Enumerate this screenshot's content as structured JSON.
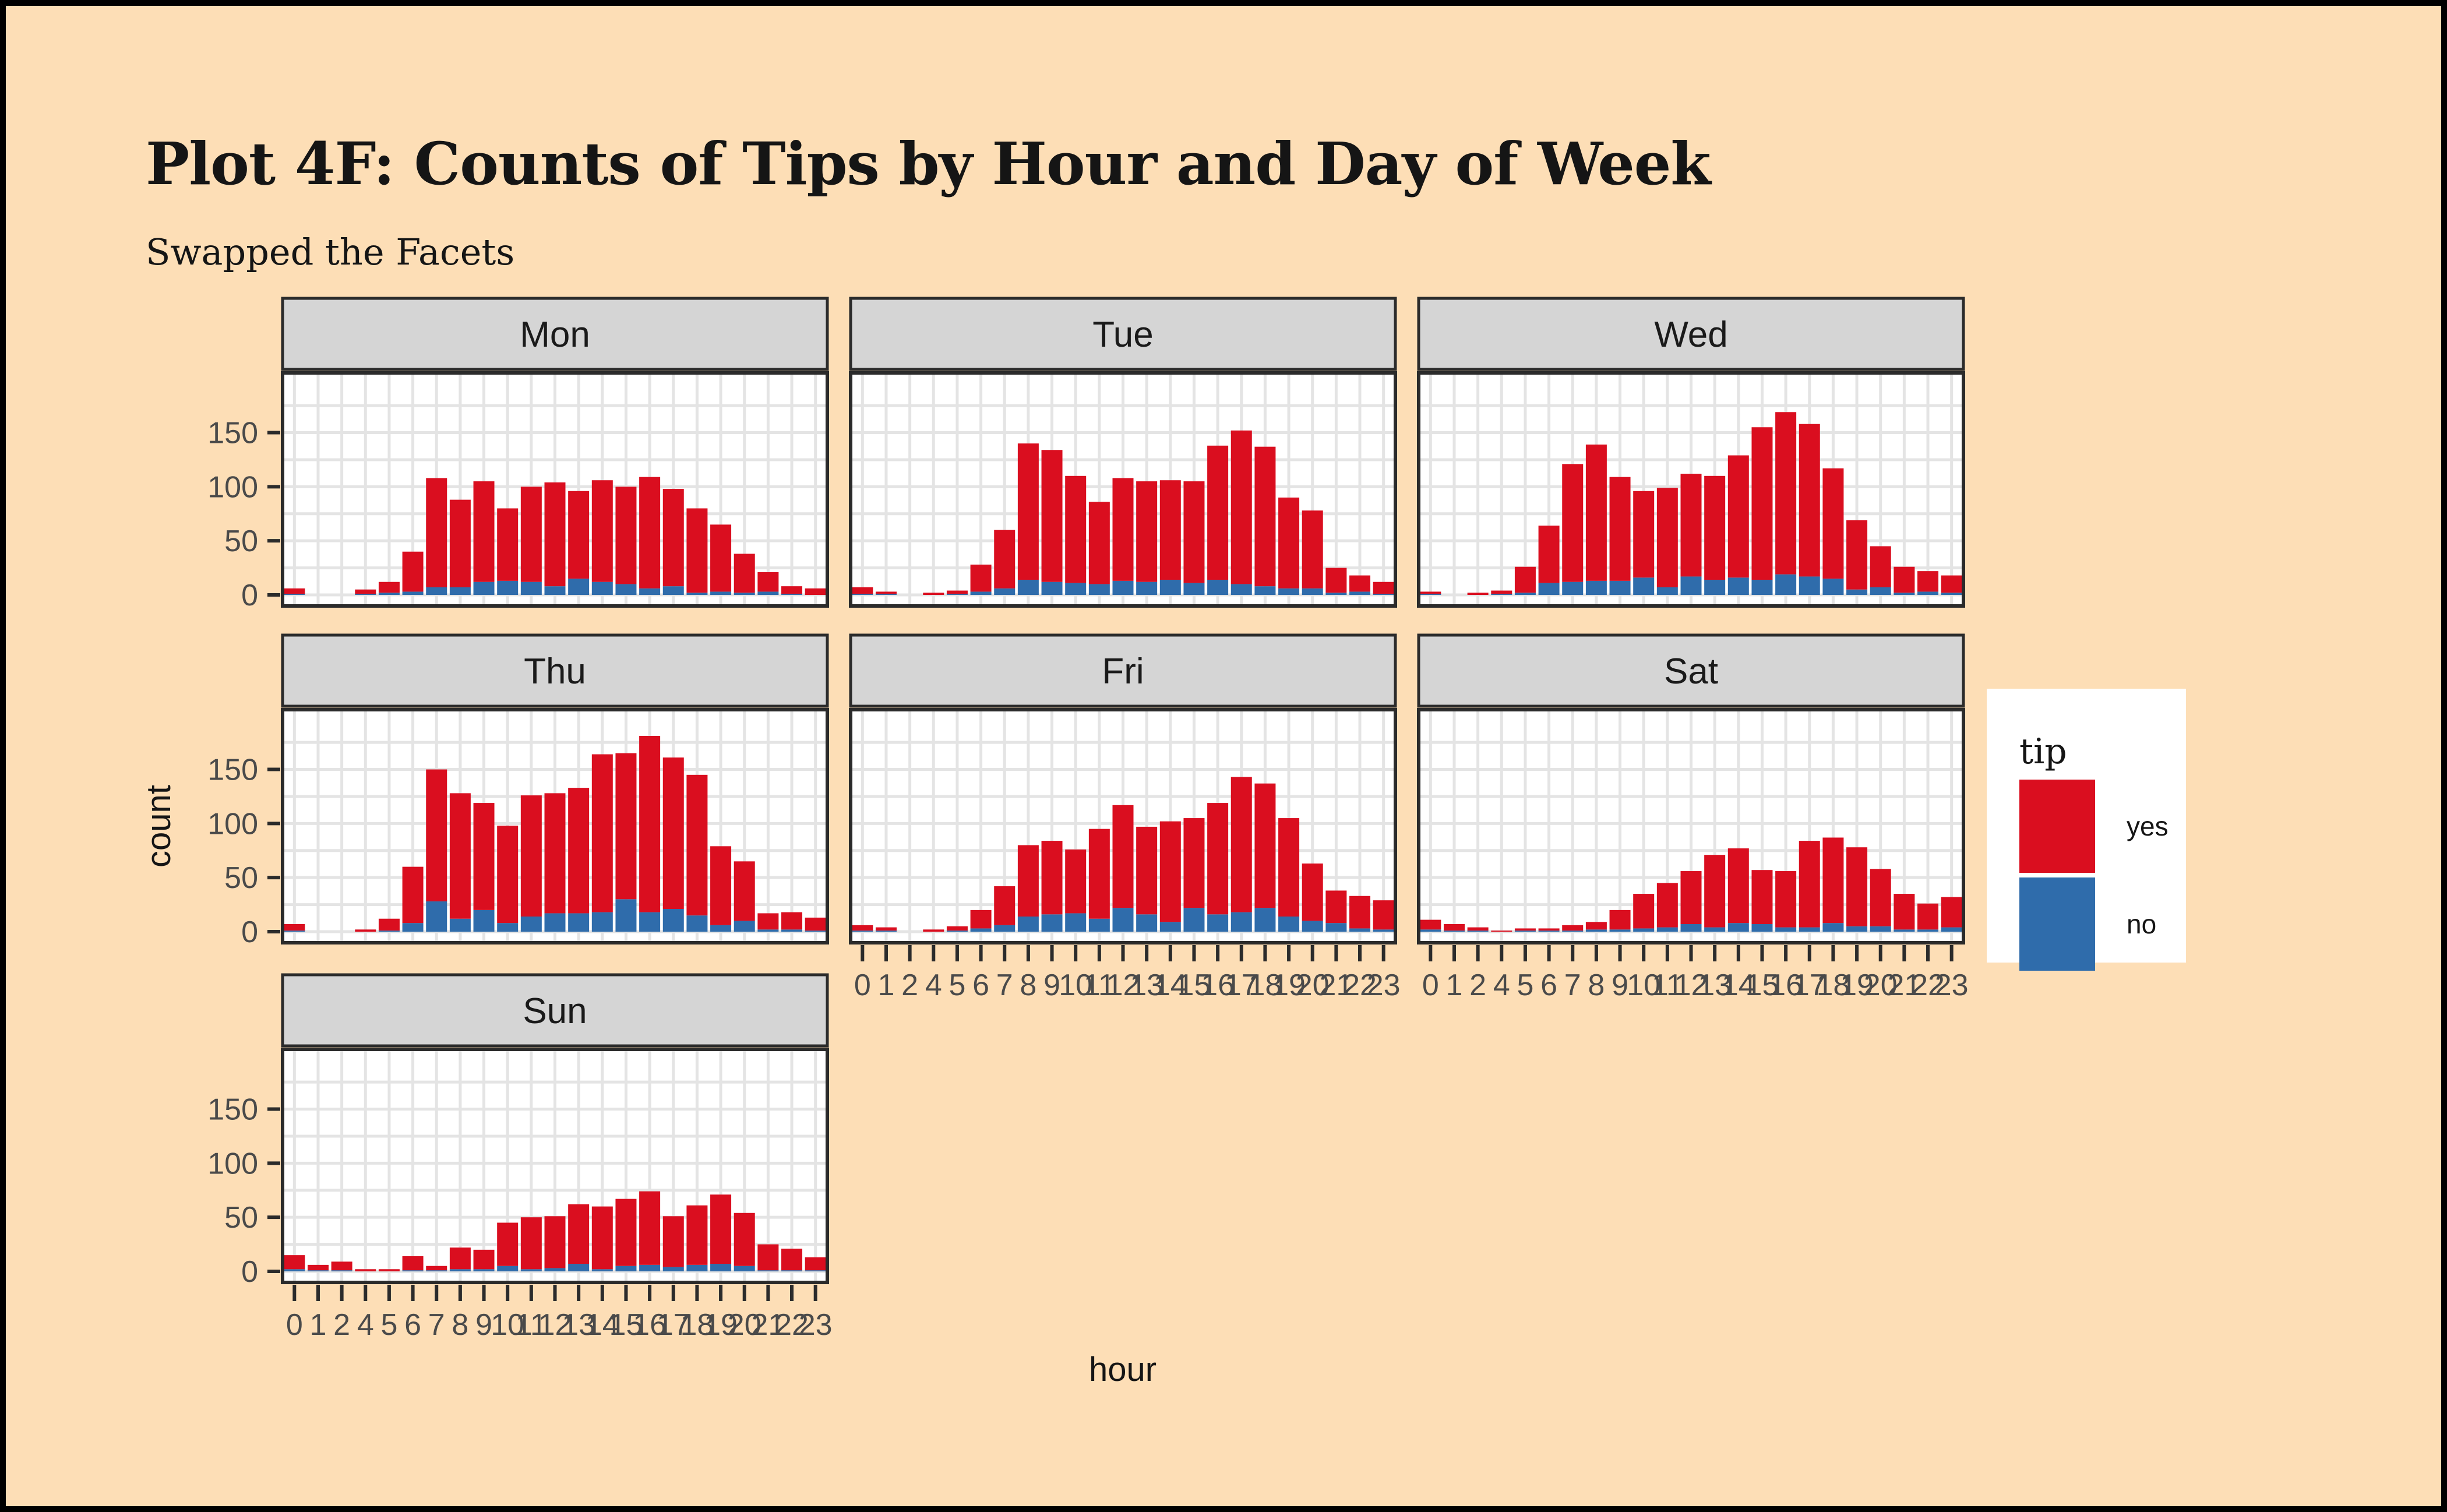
{
  "page": {
    "background_color": "#FDDEB6",
    "outer_border_color": "#000000"
  },
  "chart_data": {
    "type": "bar",
    "stacked": true,
    "title": "Plot 4F: Counts of Tips by Hour and Day of Week",
    "subtitle": "Swapped the Facets",
    "xlabel": "hour",
    "ylabel": "count",
    "categories": [
      "0",
      "1",
      "2",
      "4",
      "5",
      "6",
      "7",
      "8",
      "9",
      "10",
      "11",
      "12",
      "13",
      "14",
      "15",
      "16",
      "17",
      "18",
      "19",
      "20",
      "21",
      "22",
      "23"
    ],
    "y_ticks": [
      "0",
      "50",
      "100",
      "150"
    ],
    "ylim": [
      0,
      195
    ],
    "grid": true,
    "panel_background": "#FFFFFF",
    "grid_color": "#E4E4E4",
    "strip_background": "#D5D5D5",
    "border_color": "#2B2B2B",
    "tick_label_color": "#4A4A4A",
    "legend": {
      "title": "tip",
      "position": "right",
      "background": "#FFFFFF",
      "entries": [
        {
          "label": "yes",
          "color": "#DA0E1F"
        },
        {
          "label": "no",
          "color": "#2F6CAB"
        }
      ]
    },
    "stack_order_bottom_to_top": [
      "no",
      "yes"
    ],
    "facets": [
      {
        "label": "Mon",
        "row": 0,
        "col": 0,
        "yes": [
          5,
          0,
          0,
          4,
          10,
          37,
          101,
          81,
          93,
          67,
          88,
          96,
          81,
          94,
          90,
          103,
          90,
          78,
          62,
          36,
          18,
          7,
          6
        ],
        "no": [
          1,
          0,
          0,
          1,
          2,
          3,
          7,
          7,
          12,
          13,
          12,
          8,
          15,
          12,
          10,
          6,
          8,
          2,
          3,
          2,
          3,
          1,
          0
        ]
      },
      {
        "label": "Tue",
        "row": 0,
        "col": 1,
        "yes": [
          6,
          2,
          0,
          2,
          3,
          25,
          54,
          126,
          122,
          99,
          76,
          95,
          93,
          92,
          94,
          124,
          142,
          129,
          84,
          72,
          23,
          15,
          11
        ],
        "no": [
          1,
          1,
          0,
          0,
          1,
          3,
          6,
          14,
          12,
          11,
          10,
          13,
          12,
          14,
          11,
          14,
          10,
          8,
          6,
          6,
          2,
          3,
          1
        ]
      },
      {
        "label": "Wed",
        "row": 0,
        "col": 2,
        "yes": [
          2,
          0,
          2,
          3,
          24,
          53,
          109,
          126,
          96,
          80,
          92,
          95,
          96,
          113,
          141,
          150,
          141,
          102,
          64,
          38,
          24,
          19,
          16
        ],
        "no": [
          1,
          0,
          0,
          1,
          2,
          11,
          12,
          13,
          13,
          16,
          7,
          17,
          14,
          16,
          14,
          19,
          17,
          15,
          5,
          7,
          2,
          3,
          2
        ]
      },
      {
        "label": "Thu",
        "row": 1,
        "col": 0,
        "yes": [
          6,
          0,
          0,
          2,
          11,
          52,
          122,
          116,
          99,
          90,
          112,
          111,
          116,
          146,
          135,
          163,
          140,
          130,
          73,
          55,
          15,
          16,
          12
        ],
        "no": [
          1,
          0,
          0,
          0,
          1,
          8,
          28,
          12,
          20,
          8,
          14,
          17,
          17,
          18,
          30,
          18,
          21,
          15,
          6,
          10,
          2,
          2,
          1
        ]
      },
      {
        "label": "Fri",
        "row": 1,
        "col": 1,
        "yes": [
          5,
          3,
          0,
          2,
          4,
          17,
          36,
          66,
          68,
          59,
          83,
          95,
          81,
          93,
          83,
          103,
          125,
          115,
          91,
          53,
          30,
          30,
          27
        ],
        "no": [
          1,
          1,
          0,
          0,
          1,
          3,
          6,
          14,
          16,
          17,
          12,
          22,
          16,
          9,
          22,
          16,
          18,
          22,
          14,
          10,
          8,
          3,
          2
        ]
      },
      {
        "label": "Sat",
        "row": 1,
        "col": 2,
        "yes": [
          9,
          6,
          3,
          1,
          2,
          2,
          5,
          7,
          18,
          32,
          41,
          49,
          67,
          69,
          50,
          52,
          80,
          79,
          73,
          53,
          33,
          24,
          28
        ],
        "no": [
          2,
          1,
          1,
          0,
          1,
          1,
          1,
          2,
          2,
          3,
          4,
          7,
          4,
          8,
          7,
          4,
          4,
          8,
          5,
          5,
          2,
          2,
          4
        ]
      },
      {
        "label": "Sun",
        "row": 2,
        "col": 0,
        "yes": [
          13,
          5,
          8,
          2,
          2,
          13,
          4,
          20,
          18,
          40,
          48,
          48,
          55,
          58,
          62,
          68,
          47,
          55,
          64,
          49,
          24,
          20,
          12
        ],
        "no": [
          2,
          1,
          1,
          0,
          0,
          1,
          1,
          2,
          2,
          5,
          2,
          3,
          7,
          2,
          5,
          6,
          4,
          6,
          7,
          5,
          1,
          1,
          1
        ]
      }
    ]
  }
}
